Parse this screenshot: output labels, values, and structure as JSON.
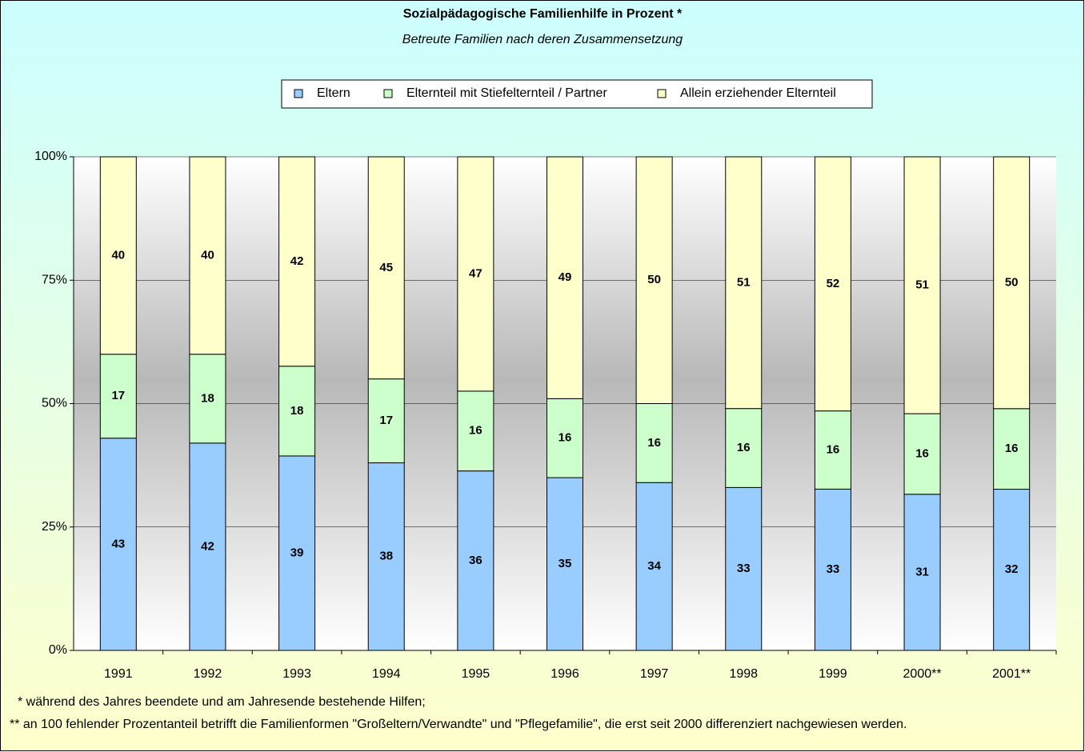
{
  "chart_data": {
    "type": "bar",
    "stacked": "percent",
    "title": "Sozialpädagogische Familienhilfe in Prozent *",
    "subtitle": "Betreute Familien nach deren Zusammensetzung",
    "categories": [
      "1991",
      "1992",
      "1993",
      "1994",
      "1995",
      "1996",
      "1997",
      "1998",
      "1999",
      "2000**",
      "2001**"
    ],
    "series": [
      {
        "name": "Eltern",
        "color": "#99ccff",
        "values": [
          43,
          42,
          39,
          38,
          36,
          35,
          34,
          33,
          33,
          31,
          32
        ]
      },
      {
        "name": "Elternteil mit Stiefelternteil / Partner",
        "color": "#ccffcc",
        "values": [
          17,
          18,
          18,
          17,
          16,
          16,
          16,
          16,
          16,
          16,
          16
        ]
      },
      {
        "name": "Allein erziehender Elternteil",
        "color": "#ffffcc",
        "values": [
          40,
          40,
          42,
          45,
          47,
          49,
          50,
          51,
          52,
          51,
          50
        ]
      }
    ],
    "ylim": [
      0,
      100
    ],
    "yticks": [
      {
        "value": 0,
        "label": "0%"
      },
      {
        "value": 25,
        "label": "25%"
      },
      {
        "value": 50,
        "label": "50%"
      },
      {
        "value": 75,
        "label": "75%"
      },
      {
        "value": 100,
        "label": "100%"
      }
    ],
    "grid": true,
    "legend": "top",
    "footnotes": [
      "* während des Jahres beendete und am Jahresende bestehende Hilfen;",
      "** an 100 fehlender Prozentanteil betrifft die Familienformen \"Großeltern/Verwandte\" und \"Pflegefamilie\", die erst seit 2000 differenziert nachgewiesen werden."
    ]
  }
}
